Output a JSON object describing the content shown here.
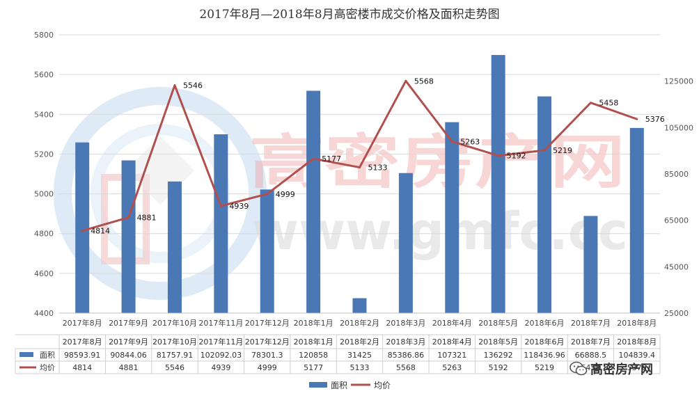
{
  "chart_data": {
    "type": "bar+line",
    "title": "2017年8月—2018年8月高密楼市成交价格及面积走势图",
    "categories": [
      "2017年8月",
      "2017年9月",
      "2017年10月",
      "2017年11月",
      "2017年12月",
      "2018年1月",
      "2018年2月",
      "2018年3月",
      "2018年4月",
      "2018年5月",
      "2018年6月",
      "2018年7月",
      "2018年8月"
    ],
    "series": [
      {
        "name": "面积",
        "type": "bar",
        "axis": "right",
        "values": [
          98593.91,
          90844.06,
          81757.91,
          102092.03,
          78301.3,
          120858,
          31425,
          85386.86,
          107321,
          136292,
          118436.96,
          66888.5,
          104839.4
        ],
        "table_labels": [
          "98593.91",
          "90844.06",
          "81757.91",
          "102092.03",
          "78301.3",
          "120858",
          "31425",
          "85386.86",
          "107321",
          "136292",
          "118436.96",
          "66888.5",
          "104839.4"
        ],
        "color": "#4a78b5"
      },
      {
        "name": "均价",
        "type": "line",
        "axis": "left",
        "values": [
          4814,
          4881,
          5546,
          4939,
          4999,
          5177,
          5133,
          5568,
          5263,
          5192,
          5219,
          5458,
          5376
        ],
        "table_labels": [
          "4814",
          "4881",
          "5546",
          "4939",
          "4999",
          "5177",
          "5133",
          "5568",
          "5263",
          "5192",
          "5219",
          "5458",
          "5376"
        ],
        "color": "#b0504e"
      }
    ],
    "left_axis": {
      "min": 4400,
      "max": 5800,
      "ticks": [
        "4400",
        "4600",
        "4800",
        "5000",
        "5200",
        "5400",
        "5600",
        "5800"
      ]
    },
    "right_axis": {
      "min": 25000,
      "max": 145000,
      "ticks": [
        "25000",
        "45000",
        "65000",
        "85000",
        "105000",
        "125000"
      ]
    },
    "grid": true,
    "legend": "bottom",
    "data_table": true
  },
  "watermark": {
    "brand_cn": "高密房产网",
    "url": "www.gmfc.cc"
  },
  "brand_badge": {
    "text": "高密房产网",
    "icon": "wechat-icon"
  },
  "colors": {
    "bar": "#4a78b5",
    "line": "#b0504e",
    "watermark_red": "#e25a5a",
    "watermark_gray": "#c8c8c8",
    "watermark_blue": "#9fc3e4"
  }
}
